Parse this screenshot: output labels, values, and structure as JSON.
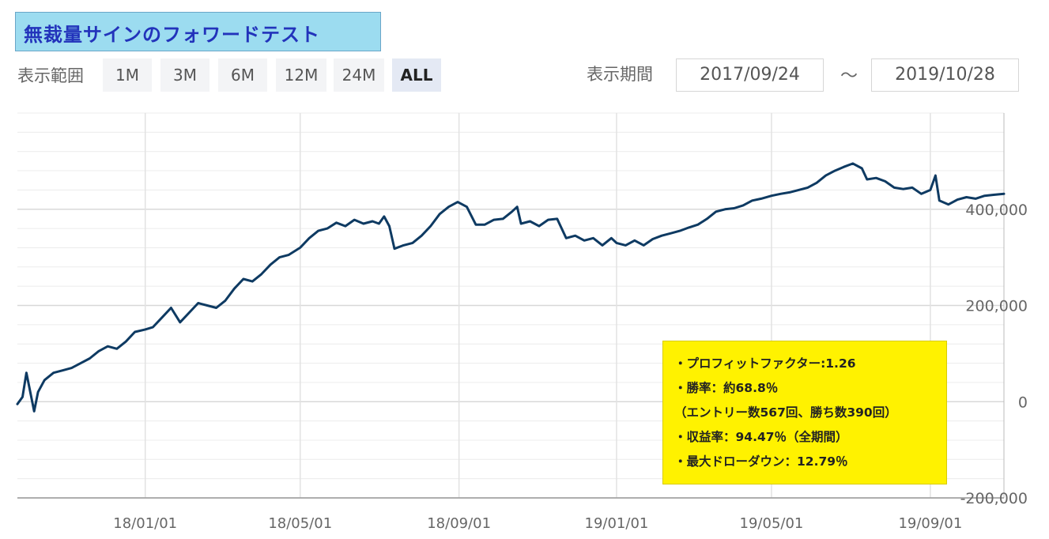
{
  "title": "無裁量サインのフォワードテスト",
  "range": {
    "label": "表示範囲",
    "buttons": [
      "1M",
      "3M",
      "6M",
      "12M",
      "24M",
      "ALL"
    ],
    "active": "ALL"
  },
  "period": {
    "label": "表示期間",
    "start": "2017/09/24",
    "separator": "～",
    "end": "2019/10/28"
  },
  "stats": [
    "・プロフィットファクター:1.26",
    "・勝率：約68.8％",
    "（エントリー数567回、勝ち数390回）",
    "・収益率：94.47％（全期間）",
    "・最大ドローダウン：12.79％"
  ],
  "colors": {
    "line": "#0e3a62",
    "stats_background": "#fff200",
    "title_background": "#9cdcf0",
    "title_text": "#2233bb"
  },
  "chart_data": {
    "type": "line",
    "title": "",
    "xlabel": "",
    "ylabel": "",
    "x_tick_labels": [
      "18/01/01",
      "18/05/01",
      "18/09/01",
      "19/01/01",
      "19/05/01",
      "19/09/01"
    ],
    "y_tick_labels": [
      "-200,000",
      "0",
      "200,000",
      "400,000"
    ],
    "y_ticks": [
      -200000,
      0,
      200000,
      400000
    ],
    "ylim": [
      -200000,
      600000
    ],
    "xlim": [
      "2017-09-24",
      "2019-10-28"
    ],
    "grid": true,
    "series": [
      {
        "values": [
          [
            "2017-09-24",
            -5000
          ],
          [
            "2017-09-28",
            10000
          ],
          [
            "2017-10-01",
            60000
          ],
          [
            "2017-10-04",
            20000
          ],
          [
            "2017-10-07",
            -20000
          ],
          [
            "2017-10-10",
            20000
          ],
          [
            "2017-10-15",
            45000
          ],
          [
            "2017-10-22",
            60000
          ],
          [
            "2017-10-29",
            65000
          ],
          [
            "2017-11-05",
            70000
          ],
          [
            "2017-11-12",
            80000
          ],
          [
            "2017-11-19",
            90000
          ],
          [
            "2017-11-26",
            105000
          ],
          [
            "2017-12-03",
            115000
          ],
          [
            "2017-12-10",
            110000
          ],
          [
            "2017-12-17",
            125000
          ],
          [
            "2017-12-24",
            145000
          ],
          [
            "2018-01-01",
            150000
          ],
          [
            "2018-01-07",
            155000
          ],
          [
            "2018-01-14",
            175000
          ],
          [
            "2018-01-21",
            195000
          ],
          [
            "2018-01-28",
            165000
          ],
          [
            "2018-02-04",
            185000
          ],
          [
            "2018-02-11",
            205000
          ],
          [
            "2018-02-18",
            200000
          ],
          [
            "2018-02-25",
            195000
          ],
          [
            "2018-03-04",
            210000
          ],
          [
            "2018-03-11",
            235000
          ],
          [
            "2018-03-18",
            255000
          ],
          [
            "2018-03-25",
            250000
          ],
          [
            "2018-04-01",
            265000
          ],
          [
            "2018-04-08",
            285000
          ],
          [
            "2018-04-15",
            300000
          ],
          [
            "2018-04-22",
            305000
          ],
          [
            "2018-05-01",
            320000
          ],
          [
            "2018-05-08",
            340000
          ],
          [
            "2018-05-15",
            355000
          ],
          [
            "2018-05-22",
            360000
          ],
          [
            "2018-05-29",
            372000
          ],
          [
            "2018-06-05",
            365000
          ],
          [
            "2018-06-12",
            378000
          ],
          [
            "2018-06-19",
            370000
          ],
          [
            "2018-06-26",
            375000
          ],
          [
            "2018-07-01",
            370000
          ],
          [
            "2018-07-05",
            385000
          ],
          [
            "2018-07-09",
            365000
          ],
          [
            "2018-07-13",
            318000
          ],
          [
            "2018-07-20",
            325000
          ],
          [
            "2018-07-27",
            330000
          ],
          [
            "2018-08-03",
            345000
          ],
          [
            "2018-08-10",
            365000
          ],
          [
            "2018-08-17",
            390000
          ],
          [
            "2018-08-24",
            405000
          ],
          [
            "2018-08-31",
            415000
          ],
          [
            "2018-09-07",
            405000
          ],
          [
            "2018-09-14",
            368000
          ],
          [
            "2018-09-21",
            368000
          ],
          [
            "2018-09-28",
            378000
          ],
          [
            "2018-10-05",
            380000
          ],
          [
            "2018-10-12",
            395000
          ],
          [
            "2018-10-16",
            405000
          ],
          [
            "2018-10-19",
            370000
          ],
          [
            "2018-10-26",
            375000
          ],
          [
            "2018-11-02",
            365000
          ],
          [
            "2018-11-09",
            378000
          ],
          [
            "2018-11-16",
            380000
          ],
          [
            "2018-11-23",
            340000
          ],
          [
            "2018-11-30",
            345000
          ],
          [
            "2018-12-07",
            335000
          ],
          [
            "2018-12-14",
            340000
          ],
          [
            "2018-12-21",
            325000
          ],
          [
            "2018-12-28",
            340000
          ],
          [
            "2019-01-01",
            330000
          ],
          [
            "2019-01-08",
            325000
          ],
          [
            "2019-01-15",
            335000
          ],
          [
            "2019-01-22",
            325000
          ],
          [
            "2019-01-29",
            338000
          ],
          [
            "2019-02-05",
            345000
          ],
          [
            "2019-02-12",
            350000
          ],
          [
            "2019-02-19",
            355000
          ],
          [
            "2019-02-26",
            362000
          ],
          [
            "2019-03-05",
            368000
          ],
          [
            "2019-03-12",
            380000
          ],
          [
            "2019-03-19",
            395000
          ],
          [
            "2019-03-26",
            400000
          ],
          [
            "2019-04-02",
            402000
          ],
          [
            "2019-04-09",
            408000
          ],
          [
            "2019-04-16",
            418000
          ],
          [
            "2019-04-23",
            422000
          ],
          [
            "2019-05-01",
            428000
          ],
          [
            "2019-05-08",
            432000
          ],
          [
            "2019-05-15",
            435000
          ],
          [
            "2019-05-22",
            440000
          ],
          [
            "2019-05-29",
            445000
          ],
          [
            "2019-06-05",
            455000
          ],
          [
            "2019-06-12",
            470000
          ],
          [
            "2019-06-19",
            480000
          ],
          [
            "2019-06-26",
            488000
          ],
          [
            "2019-07-03",
            495000
          ],
          [
            "2019-07-10",
            485000
          ],
          [
            "2019-07-14",
            462000
          ],
          [
            "2019-07-21",
            465000
          ],
          [
            "2019-07-28",
            458000
          ],
          [
            "2019-08-04",
            445000
          ],
          [
            "2019-08-11",
            442000
          ],
          [
            "2019-08-18",
            445000
          ],
          [
            "2019-08-25",
            432000
          ],
          [
            "2019-09-01",
            440000
          ],
          [
            "2019-09-05",
            470000
          ],
          [
            "2019-09-08",
            418000
          ],
          [
            "2019-09-15",
            410000
          ],
          [
            "2019-09-22",
            420000
          ],
          [
            "2019-09-29",
            425000
          ],
          [
            "2019-10-06",
            422000
          ],
          [
            "2019-10-13",
            428000
          ],
          [
            "2019-10-20",
            430000
          ],
          [
            "2019-10-28",
            432000
          ]
        ]
      }
    ]
  }
}
